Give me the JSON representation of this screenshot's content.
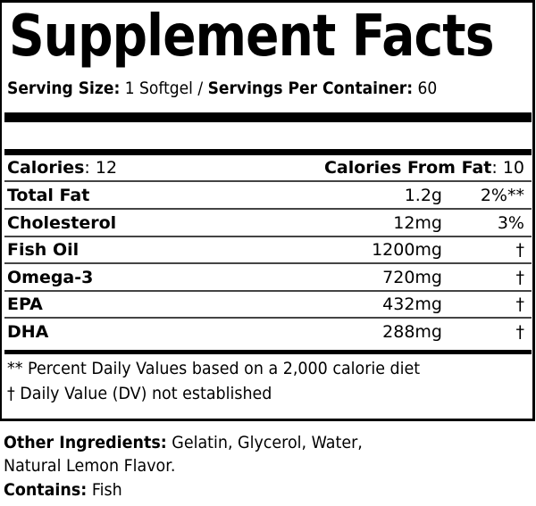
{
  "title": "Supplement Facts",
  "serving": {
    "size_label": "Serving Size:",
    "size_value": "1 Softgel",
    "separator": "/",
    "per_container_label": "Servings Per Container:",
    "per_container_value": "60"
  },
  "calories": {
    "label": "Calories",
    "value": ": 12",
    "from_fat_label": "Calories From Fat",
    "from_fat_value": ": 10"
  },
  "nutrients": [
    {
      "name": "Total Fat",
      "amount": "1.2g",
      "dv": "2%**"
    },
    {
      "name": "Cholesterol",
      "amount": "12mg",
      "dv": "3%"
    },
    {
      "name": "Fish Oil",
      "amount": "1200mg",
      "dv": "†"
    },
    {
      "name": "Omega-3",
      "amount": "720mg",
      "dv": "†"
    },
    {
      "name": "EPA",
      "amount": "432mg",
      "dv": "†"
    },
    {
      "name": "DHA",
      "amount": "288mg",
      "dv": "†"
    }
  ],
  "footnotes": [
    "** Percent Daily Values based on a 2,000 calorie diet",
    "† Daily Value (DV) not established"
  ],
  "other_ingredients": {
    "label": "Other Ingredients:",
    "line1": "Gelatin, Glycerol, Water,",
    "line2": "Natural Lemon Flavor."
  },
  "contains": {
    "label": "Contains:",
    "value": "Fish"
  }
}
